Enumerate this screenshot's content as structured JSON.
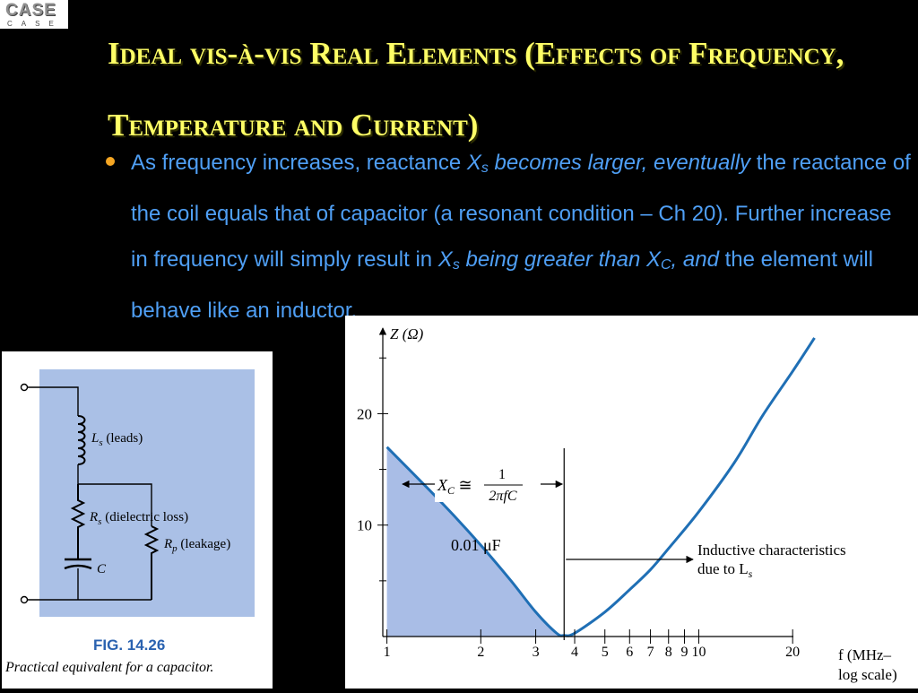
{
  "logo": {
    "main": "CASE",
    "sub": "CASE"
  },
  "title": "Ideal vis-à-vis Real Elements (Effects of Frequency, Temperature and Current)",
  "bullet": {
    "p1": "As frequency increases, reactance ",
    "xs1": "X",
    "xs1_sub": "s",
    "p2": " becomes larger, eventually",
    "p3": " the reactance of the coil equals that of capacitor (a resonant condition – Ch 20). Further increase in frequency will simply result in ",
    "xs2": "X",
    "xs2_sub": "s",
    "p4": " being greater than X",
    "xc_sub": "C",
    "p5": ", and",
    "p6": " the element will behave like an inductor."
  },
  "figure": {
    "number": "FIG. 14.26",
    "caption": "Practical equivalent for a capacitor.",
    "labels": {
      "ls": "L",
      "ls_sub": "s",
      "ls_text": " (leads)",
      "rs": "R",
      "rs_sub": "s",
      "rs_text": " (dielectric loss)",
      "rp": "R",
      "rp_sub": "p",
      "rp_text": " (leakage)",
      "c": "C"
    }
  },
  "chart_data": {
    "type": "line",
    "x_scale": "log",
    "xlabel_line1": "f (MHz–",
    "xlabel_line2": "log scale)",
    "ylabel": "Z (Ω)",
    "x_ticks": [
      1,
      2,
      3,
      4,
      5,
      6,
      7,
      8,
      9,
      10,
      20
    ],
    "x_tick_labels": [
      "1",
      "2",
      "3",
      "4",
      "5",
      "6",
      "7",
      "8",
      "9",
      "10",
      "20"
    ],
    "y_ticks": [
      10,
      20
    ],
    "y_tick_labels": [
      "10",
      "20"
    ],
    "xlim": [
      0.97,
      28
    ],
    "ylim": [
      0,
      28
    ],
    "series": [
      {
        "x": [
          1,
          1.5,
          2,
          2.5,
          3,
          3.5,
          3.7,
          4,
          5,
          6,
          7,
          8,
          10,
          13,
          16,
          20,
          23.5
        ],
        "y": [
          17,
          12,
          8.2,
          5,
          2.2,
          0.3,
          0.1,
          0.3,
          2.2,
          4.2,
          6,
          7.9,
          11.2,
          15.6,
          19.8,
          23.8,
          26.8
        ]
      }
    ],
    "resonance_x": 3.7,
    "annotations": {
      "xc_eq": "X",
      "xc_sub": "C",
      "xc_approx": " ≅ ",
      "frac_num": "1",
      "frac_den": "2πfC",
      "cap_value": "0.01 μF",
      "inductive_line1": "Inductive characteristics",
      "inductive_line2": "due to L",
      "inductive_sub": "s"
    }
  }
}
